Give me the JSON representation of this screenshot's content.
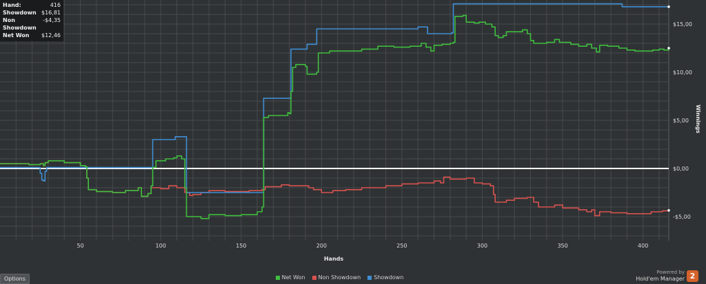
{
  "stats_box": {
    "rows": [
      {
        "label": "Hand:",
        "value": "416"
      },
      {
        "label": "Showdown",
        "value": "$16,81"
      },
      {
        "label": "Non Showdown",
        "value": "-$4,35"
      },
      {
        "label": "Net Won",
        "value": "$12,46"
      }
    ]
  },
  "options_label": "Options",
  "brand": {
    "powered_by": "Powered by",
    "product": "Hold'em Manager",
    "logo_text": "2"
  },
  "chart_data": {
    "type": "line",
    "xlabel": "Hands",
    "ylabel": "Winnings",
    "xlim": [
      0,
      416
    ],
    "ylim": [
      -7.5,
      17.5
    ],
    "x_ticks": [
      50,
      100,
      150,
      200,
      250,
      300,
      350,
      400
    ],
    "x_tick_labels": [
      "50",
      "100",
      "150",
      "200",
      "250",
      "300",
      "350",
      "400"
    ],
    "y_ticks": [
      -5,
      0,
      5,
      10,
      15
    ],
    "y_tick_labels": [
      "-$5,00",
      "$0,00",
      "$5,00",
      "$10,00",
      "$15,00"
    ],
    "zero_line": true,
    "grid": true,
    "legend_position": "bottom-center",
    "series": [
      {
        "name": "Net Won",
        "color": "#3fbf3f",
        "points": [
          [
            0,
            0.5
          ],
          [
            12,
            0.5
          ],
          [
            18,
            0.4
          ],
          [
            25,
            0.5
          ],
          [
            27,
            0.3
          ],
          [
            28,
            0.6
          ],
          [
            30,
            0.8
          ],
          [
            40,
            0.6
          ],
          [
            50,
            0.3
          ],
          [
            53,
            0.2
          ],
          [
            54,
            -1.0
          ],
          [
            55,
            -2.2
          ],
          [
            60,
            -2.4
          ],
          [
            70,
            -2.5
          ],
          [
            78,
            -2.3
          ],
          [
            86,
            -2.0
          ],
          [
            88,
            -2.9
          ],
          [
            92,
            -2.6
          ],
          [
            94,
            -1.8
          ],
          [
            95,
            0.1
          ],
          [
            97,
            0.8
          ],
          [
            103,
            1.0
          ],
          [
            108,
            1.1
          ],
          [
            110,
            1.3
          ],
          [
            113,
            1.0
          ],
          [
            115,
            -2.0
          ],
          [
            116,
            -5.0
          ],
          [
            125,
            -5.2
          ],
          [
            130,
            -4.8
          ],
          [
            140,
            -4.9
          ],
          [
            150,
            -4.8
          ],
          [
            157,
            -4.8
          ],
          [
            160,
            -4.5
          ],
          [
            163,
            -4.0
          ],
          [
            164,
            5.3
          ],
          [
            167,
            5.5
          ],
          [
            175,
            5.5
          ],
          [
            179,
            5.8
          ],
          [
            180,
            5.7
          ],
          [
            181,
            8.0
          ],
          [
            182,
            10.5
          ],
          [
            184,
            10.8
          ],
          [
            190,
            10.6
          ],
          [
            191,
            9.8
          ],
          [
            197,
            10.0
          ],
          [
            198,
            12.0
          ],
          [
            205,
            12.2
          ],
          [
            215,
            12.2
          ],
          [
            225,
            12.4
          ],
          [
            235,
            12.7
          ],
          [
            245,
            12.6
          ],
          [
            255,
            12.7
          ],
          [
            262,
            13.0
          ],
          [
            265,
            12.6
          ],
          [
            268,
            12.2
          ],
          [
            270,
            12.8
          ],
          [
            275,
            12.9
          ],
          [
            280,
            13.0
          ],
          [
            282,
            13.1
          ],
          [
            283,
            15.8
          ],
          [
            288,
            15.9
          ],
          [
            290,
            15.2
          ],
          [
            295,
            15.1
          ],
          [
            298,
            15.2
          ],
          [
            302,
            15.0
          ],
          [
            306,
            14.7
          ],
          [
            308,
            13.8
          ],
          [
            310,
            13.6
          ],
          [
            313,
            13.8
          ],
          [
            315,
            14.2
          ],
          [
            325,
            14.4
          ],
          [
            328,
            14.0
          ],
          [
            330,
            13.3
          ],
          [
            332,
            13.0
          ],
          [
            340,
            13.1
          ],
          [
            345,
            13.4
          ],
          [
            348,
            13.1
          ],
          [
            355,
            12.9
          ],
          [
            360,
            12.7
          ],
          [
            365,
            12.9
          ],
          [
            368,
            12.5
          ],
          [
            371,
            12.1
          ],
          [
            373,
            12.8
          ],
          [
            378,
            12.7
          ],
          [
            385,
            12.5
          ],
          [
            390,
            12.3
          ],
          [
            395,
            12.2
          ],
          [
            403,
            12.2
          ],
          [
            406,
            12.3
          ],
          [
            410,
            12.4
          ],
          [
            413,
            12.3
          ],
          [
            416,
            12.5
          ]
        ]
      },
      {
        "name": "Non Showdown",
        "color": "#d9534f",
        "points": [
          [
            0,
            0.5
          ],
          [
            12,
            0.5
          ],
          [
            18,
            0.4
          ],
          [
            25,
            0.5
          ],
          [
            27,
            0.3
          ],
          [
            28,
            0.6
          ],
          [
            30,
            0.8
          ],
          [
            40,
            0.6
          ],
          [
            50,
            0.3
          ],
          [
            53,
            0.2
          ],
          [
            54,
            -1.0
          ],
          [
            55,
            -2.2
          ],
          [
            60,
            -2.4
          ],
          [
            70,
            -2.5
          ],
          [
            78,
            -2.3
          ],
          [
            86,
            -2.0
          ],
          [
            88,
            -2.9
          ],
          [
            92,
            -2.6
          ],
          [
            94,
            -2.0
          ],
          [
            97,
            -2.0
          ],
          [
            100,
            -2.1
          ],
          [
            105,
            -1.8
          ],
          [
            110,
            -2.0
          ],
          [
            115,
            -2.5
          ],
          [
            118,
            -2.8
          ],
          [
            120,
            -2.7
          ],
          [
            125,
            -2.5
          ],
          [
            130,
            -2.3
          ],
          [
            140,
            -2.4
          ],
          [
            155,
            -2.3
          ],
          [
            163,
            -2.2
          ],
          [
            165,
            -1.9
          ],
          [
            175,
            -1.7
          ],
          [
            180,
            -1.8
          ],
          [
            185,
            -1.8
          ],
          [
            192,
            -2.0
          ],
          [
            195,
            -2.2
          ],
          [
            200,
            -2.5
          ],
          [
            207,
            -2.3
          ],
          [
            215,
            -2.2
          ],
          [
            225,
            -2.0
          ],
          [
            240,
            -1.8
          ],
          [
            250,
            -1.6
          ],
          [
            260,
            -1.5
          ],
          [
            270,
            -1.3
          ],
          [
            274,
            -1.5
          ],
          [
            276,
            -0.9
          ],
          [
            280,
            -1.1
          ],
          [
            290,
            -1.0
          ],
          [
            295,
            -1.5
          ],
          [
            300,
            -1.6
          ],
          [
            305,
            -1.8
          ],
          [
            307,
            -2.7
          ],
          [
            308,
            -3.5
          ],
          [
            315,
            -3.3
          ],
          [
            320,
            -3.1
          ],
          [
            328,
            -3.0
          ],
          [
            332,
            -3.5
          ],
          [
            335,
            -4.0
          ],
          [
            345,
            -3.8
          ],
          [
            350,
            -4.1
          ],
          [
            360,
            -4.3
          ],
          [
            365,
            -4.5
          ],
          [
            368,
            -4.3
          ],
          [
            370,
            -4.9
          ],
          [
            373,
            -4.5
          ],
          [
            380,
            -4.6
          ],
          [
            390,
            -4.7
          ],
          [
            400,
            -4.7
          ],
          [
            405,
            -4.5
          ],
          [
            412,
            -4.4
          ],
          [
            416,
            -4.35
          ]
        ]
      },
      {
        "name": "Showdown",
        "color": "#3f8fd6",
        "points": [
          [
            0,
            0.1
          ],
          [
            24,
            0.1
          ],
          [
            25,
            -0.5
          ],
          [
            26,
            -1.2
          ],
          [
            27,
            -1.3
          ],
          [
            28,
            -0.3
          ],
          [
            29,
            0.1
          ],
          [
            50,
            0.1
          ],
          [
            55,
            0.1
          ],
          [
            94,
            0.1
          ],
          [
            95,
            3.0
          ],
          [
            108,
            3.0
          ],
          [
            109,
            3.3
          ],
          [
            115,
            3.3
          ],
          [
            116,
            -2.5
          ],
          [
            140,
            -2.5
          ],
          [
            161,
            -2.5
          ],
          [
            163,
            -2.5
          ],
          [
            164,
            7.3
          ],
          [
            180,
            7.3
          ],
          [
            181,
            12.4
          ],
          [
            190,
            12.4
          ],
          [
            191,
            12.9
          ],
          [
            196,
            12.9
          ],
          [
            197,
            14.5
          ],
          [
            220,
            14.5
          ],
          [
            255,
            14.5
          ],
          [
            260,
            14.7
          ],
          [
            264,
            14.7
          ],
          [
            266,
            14.0
          ],
          [
            280,
            14.0
          ],
          [
            281,
            14.1
          ],
          [
            282,
            17.1
          ],
          [
            300,
            17.1
          ],
          [
            340,
            17.1
          ],
          [
            385,
            17.1
          ],
          [
            387,
            16.8
          ],
          [
            416,
            16.8
          ]
        ]
      }
    ]
  }
}
